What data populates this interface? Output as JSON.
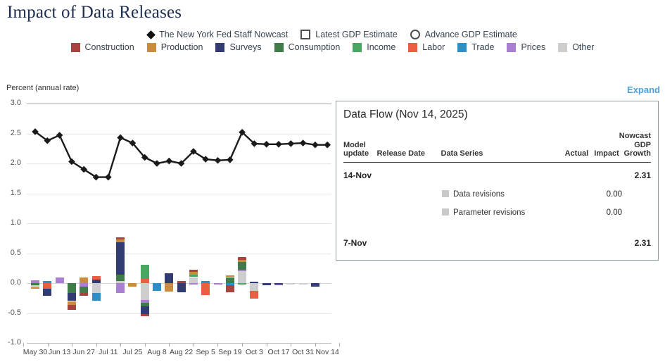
{
  "title": "Impact of Data Releases",
  "expand_label": "Expand",
  "legend": {
    "markers": [
      {
        "label": "The New York Fed Staff Nowcast",
        "marker": "diamond-filled"
      },
      {
        "label": "Latest GDP Estimate",
        "marker": "square-outline"
      },
      {
        "label": "Advance GDP Estimate",
        "marker": "circle-outline"
      }
    ],
    "categories": [
      {
        "name": "Construction",
        "color": "#a8433f"
      },
      {
        "name": "Production",
        "color": "#c98b3e"
      },
      {
        "name": "Surveys",
        "color": "#323c72"
      },
      {
        "name": "Consumption",
        "color": "#3f7c47"
      },
      {
        "name": "Income",
        "color": "#4aa562"
      },
      {
        "name": "Labor",
        "color": "#ec5e41"
      },
      {
        "name": "Trade",
        "color": "#2e8fc7"
      },
      {
        "name": "Prices",
        "color": "#aa7ed1"
      },
      {
        "name": "Other",
        "color": "#cecece"
      }
    ]
  },
  "chart_data": {
    "type": "line+stacked-bar",
    "ylabel": "Percent (annual rate)",
    "ylim": [
      -1.0,
      3.0
    ],
    "ytick_step": 0.5,
    "yticks": [
      3.0,
      2.5,
      2.0,
      1.5,
      1.0,
      0.5,
      0.0,
      -0.5,
      -1.0
    ],
    "x_labels_shown": [
      "May 30",
      "Jun 13",
      "Jun 27",
      "Jul 11",
      "Jul 25",
      "Aug 8",
      "Aug 22",
      "Sep 5",
      "Sep 19",
      "Oct 3",
      "Oct 17",
      "Oct 31",
      "Nov 14"
    ],
    "weeks": [
      "May 30",
      "Jun 6",
      "Jun 13",
      "Jun 20",
      "Jun 27",
      "Jul 4",
      "Jul 11",
      "Jul 18",
      "Jul 25",
      "Aug 1",
      "Aug 8",
      "Aug 15",
      "Aug 22",
      "Aug 29",
      "Sep 5",
      "Sep 12",
      "Sep 19",
      "Sep 26",
      "Oct 3",
      "Oct 10",
      "Oct 17",
      "Oct 24",
      "Oct 31",
      "Nov 7",
      "Nov 14"
    ],
    "nowcast_line": {
      "name": "The New York Fed Staff Nowcast",
      "color": "#1a1a1a",
      "values": [
        2.53,
        2.38,
        2.47,
        2.03,
        1.9,
        1.77,
        1.77,
        2.43,
        2.34,
        2.1,
        2.0,
        2.04,
        2.0,
        2.2,
        2.07,
        2.05,
        2.06,
        2.52,
        2.33,
        2.32,
        2.32,
        2.33,
        2.34,
        2.31,
        2.31
      ]
    },
    "bar_impacts": [
      {
        "week": "May 30",
        "segments": [
          [
            "Prices",
            0.05
          ],
          [
            "Consumption",
            -0.04
          ],
          [
            "Other",
            -0.03
          ],
          [
            "Production",
            -0.03
          ]
        ]
      },
      {
        "week": "Jun 6",
        "segments": [
          [
            "Trade",
            0.04
          ],
          [
            "Labor",
            -0.09
          ],
          [
            "Surveys",
            -0.12
          ]
        ]
      },
      {
        "week": "Jun 13",
        "segments": [
          [
            "Prices",
            0.09
          ]
        ]
      },
      {
        "week": "Jun 20",
        "segments": [
          [
            "Consumption",
            -0.17
          ],
          [
            "Surveys",
            -0.13
          ],
          [
            "Production",
            -0.07
          ],
          [
            "Construction",
            -0.08
          ]
        ]
      },
      {
        "week": "Jun 27",
        "segments": [
          [
            "Production",
            0.09
          ],
          [
            "Prices",
            -0.06
          ],
          [
            "Consumption",
            -0.11
          ],
          [
            "Construction",
            -0.04
          ]
        ]
      },
      {
        "week": "Jul 4",
        "segments": [
          [
            "Surveys",
            0.06
          ],
          [
            "Labor",
            0.06
          ],
          [
            "Other",
            -0.16
          ],
          [
            "Trade",
            -0.13
          ]
        ]
      },
      {
        "week": "Jul 11",
        "segments": []
      },
      {
        "week": "Jul 18",
        "segments": [
          [
            "Other",
            0.04
          ],
          [
            "Consumption",
            0.1
          ],
          [
            "Surveys",
            0.54
          ],
          [
            "Production",
            0.05
          ],
          [
            "Construction",
            0.04
          ],
          [
            "Prices",
            -0.17
          ]
        ]
      },
      {
        "week": "Jul 25",
        "segments": [
          [
            "Production",
            -0.06
          ]
        ]
      },
      {
        "week": "Aug 1",
        "segments": [
          [
            "Labor",
            0.07
          ],
          [
            "Income",
            0.24
          ],
          [
            "Other",
            -0.28
          ],
          [
            "Prices",
            -0.05
          ],
          [
            "Consumption",
            -0.06
          ],
          [
            "Surveys",
            -0.13
          ],
          [
            "Construction",
            -0.03
          ]
        ]
      },
      {
        "week": "Aug 8",
        "segments": [
          [
            "Trade",
            -0.13
          ]
        ]
      },
      {
        "week": "Aug 15",
        "segments": [
          [
            "Surveys",
            0.16
          ],
          [
            "Production",
            -0.14
          ]
        ]
      },
      {
        "week": "Aug 22",
        "segments": [
          [
            "Construction",
            0.04
          ],
          [
            "Surveys",
            -0.15
          ]
        ]
      },
      {
        "week": "Aug 29",
        "segments": [
          [
            "Other",
            0.1
          ],
          [
            "Income",
            0.04
          ],
          [
            "Production",
            0.05
          ],
          [
            "Construction",
            0.03
          ],
          [
            "Prices",
            -0.02
          ]
        ]
      },
      {
        "week": "Sep 5",
        "segments": [
          [
            "Trade",
            0.04
          ],
          [
            "Labor",
            -0.2
          ]
        ]
      },
      {
        "week": "Sep 12",
        "segments": [
          [
            "Prices",
            -0.02
          ]
        ]
      },
      {
        "week": "Sep 19",
        "segments": [
          [
            "Consumption",
            0.1
          ],
          [
            "Production",
            0.03
          ],
          [
            "Trade",
            -0.03
          ],
          [
            "Construction",
            -0.12
          ]
        ]
      },
      {
        "week": "Sep 26",
        "segments": [
          [
            "Other",
            0.2
          ],
          [
            "Prices",
            0.02
          ],
          [
            "Consumption",
            0.13
          ],
          [
            "Production",
            0.04
          ],
          [
            "Construction",
            0.04
          ],
          [
            "Income",
            -0.02
          ]
        ]
      },
      {
        "week": "Oct 3",
        "segments": [
          [
            "Surveys",
            0.02
          ],
          [
            "Other",
            -0.13
          ],
          [
            "Labor",
            -0.13
          ]
        ]
      },
      {
        "week": "Oct 10",
        "segments": [
          [
            "Surveys",
            -0.03
          ]
        ]
      },
      {
        "week": "Oct 17",
        "segments": [
          [
            "Surveys",
            -0.02
          ],
          [
            "Prices",
            -0.01
          ]
        ]
      },
      {
        "week": "Oct 24",
        "segments": [
          [
            "Other",
            -0.01
          ]
        ]
      },
      {
        "week": "Oct 31",
        "segments": [
          [
            "Other",
            -0.01
          ]
        ]
      },
      {
        "week": "Nov 7",
        "segments": [
          [
            "Surveys",
            -0.06
          ]
        ]
      },
      {
        "week": "Nov 14",
        "segments": []
      }
    ]
  },
  "data_flow": {
    "title": "Data Flow (Nov 14, 2025)",
    "columns": [
      "Model update",
      "Release Date",
      "Data Series",
      "Actual",
      "Impact",
      "Nowcast GDP Growth"
    ],
    "rows": [
      {
        "type": "model",
        "date": "14-Nov",
        "nowcast": "2.31"
      },
      {
        "type": "series",
        "label": "Data revisions",
        "impact": "0.00",
        "swatch": "#c9c9c9"
      },
      {
        "type": "series",
        "label": "Parameter revisions",
        "impact": "0.00",
        "swatch": "#c9c9c9"
      },
      {
        "type": "model",
        "date": "7-Nov",
        "nowcast": "2.31"
      }
    ]
  }
}
